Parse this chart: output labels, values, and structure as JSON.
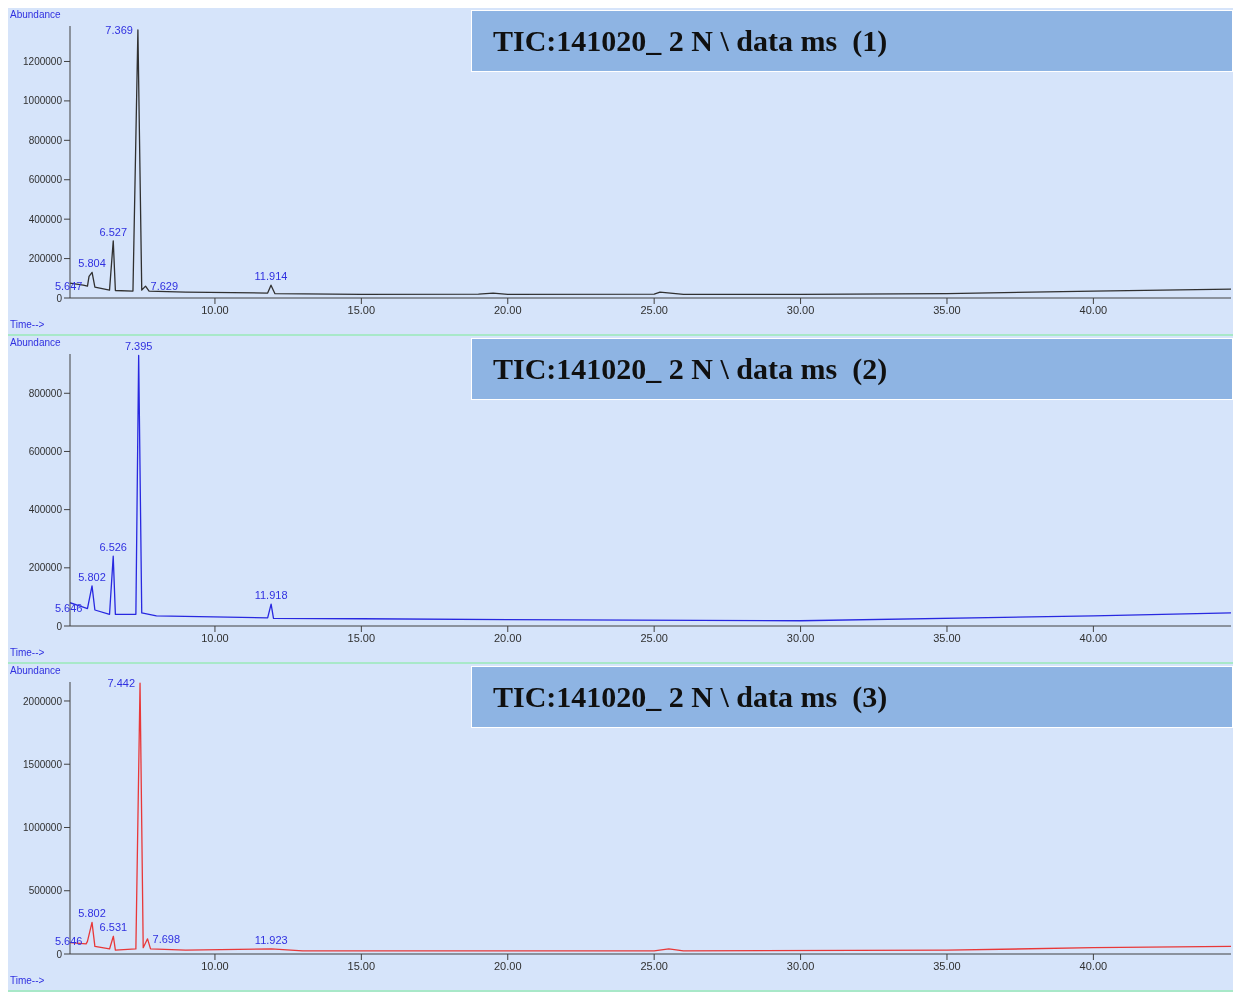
{
  "chart_data": [
    {
      "type": "line",
      "title": "TIC:141020_ 2 N \\ data ms  (1)",
      "xlabel": "Time-->",
      "ylabel": "Abundance",
      "xlim": [
        5.05,
        44.7
      ],
      "xticks": [
        {
          "value": 10,
          "label": "10.00"
        },
        {
          "value": 15,
          "label": "15.00"
        },
        {
          "value": 20,
          "label": "20.00"
        },
        {
          "value": 25,
          "label": "25.00"
        },
        {
          "value": 30,
          "label": "30.00"
        },
        {
          "value": 35,
          "label": "35.00"
        },
        {
          "value": 40,
          "label": "40.00"
        }
      ],
      "ylim": [
        0,
        1380000
      ],
      "yticks": [
        0,
        200000,
        400000,
        600000,
        800000,
        1000000,
        1200000
      ],
      "series": [
        {
          "color": "#303030",
          "x": [
            5.05,
            5.5,
            5.647,
            5.7,
            5.804,
            5.9,
            6.4,
            6.527,
            6.6,
            7.2,
            7.369,
            7.5,
            7.629,
            7.75,
            9,
            11.8,
            11.914,
            12.05,
            15,
            19,
            19.5,
            20,
            25,
            25.2,
            26,
            30,
            35,
            40,
            44.7
          ],
          "values": [
            75000,
            65000,
            60000,
            110000,
            130000,
            55000,
            40000,
            290000,
            38000,
            35000,
            1360000,
            40000,
            60000,
            35000,
            30000,
            25000,
            65000,
            22000,
            18000,
            20000,
            25000,
            18000,
            20000,
            30000,
            18000,
            18000,
            22000,
            35000,
            45000
          ]
        }
      ],
      "annotations": [
        {
          "text": "5.647",
          "x": 5.647,
          "y": 60000
        },
        {
          "text": "5.804",
          "x": 5.804,
          "y": 130000
        },
        {
          "text": "6.527",
          "x": 6.527,
          "y": 290000
        },
        {
          "text": "7.369",
          "x": 7.369,
          "y": 1360000
        },
        {
          "text": "7.629",
          "x": 7.629,
          "y": 60000
        },
        {
          "text": "11.914",
          "x": 11.914,
          "y": 65000
        }
      ]
    },
    {
      "type": "line",
      "title": "TIC:141020_ 2 N \\ data ms  (2)",
      "xlabel": "Time-->",
      "ylabel": "Abundance",
      "xlim": [
        5.05,
        44.7
      ],
      "xticks": [
        {
          "value": 10,
          "label": "10.00"
        },
        {
          "value": 15,
          "label": "15.00"
        },
        {
          "value": 20,
          "label": "20.00"
        },
        {
          "value": 25,
          "label": "25.00"
        },
        {
          "value": 30,
          "label": "30.00"
        },
        {
          "value": 35,
          "label": "35.00"
        },
        {
          "value": 40,
          "label": "40.00"
        }
      ],
      "ylim": [
        0,
        935000
      ],
      "yticks": [
        0,
        200000,
        400000,
        600000,
        800000
      ],
      "series": [
        {
          "color": "#2828e0",
          "x": [
            5.05,
            5.5,
            5.646,
            5.802,
            5.9,
            6.4,
            6.526,
            6.6,
            7.3,
            7.395,
            7.5,
            8,
            11.8,
            11.918,
            12,
            15,
            20,
            30,
            40,
            44.7
          ],
          "values": [
            80000,
            65000,
            60000,
            138000,
            55000,
            40000,
            240000,
            40000,
            40000,
            930000,
            45000,
            35000,
            28000,
            75000,
            26000,
            25000,
            22000,
            18000,
            35000,
            45000
          ]
        }
      ],
      "annotations": [
        {
          "text": "5.646",
          "x": 5.646,
          "y": 60000
        },
        {
          "text": "5.802",
          "x": 5.802,
          "y": 138000
        },
        {
          "text": "6.526",
          "x": 6.526,
          "y": 240000
        },
        {
          "text": "7.395",
          "x": 7.395,
          "y": 930000
        },
        {
          "text": "11.918",
          "x": 11.918,
          "y": 75000
        }
      ]
    },
    {
      "type": "line",
      "title": "TIC:141020_ 2 N \\ data ms  (3)",
      "xlabel": "Time-->",
      "ylabel": "Abundance",
      "xlim": [
        5.05,
        44.7
      ],
      "xticks": [
        {
          "value": 10,
          "label": "10.00"
        },
        {
          "value": 15,
          "label": "15.00"
        },
        {
          "value": 20,
          "label": "20.00"
        },
        {
          "value": 25,
          "label": "25.00"
        },
        {
          "value": 30,
          "label": "30.00"
        },
        {
          "value": 35,
          "label": "35.00"
        },
        {
          "value": 40,
          "label": "40.00"
        }
      ],
      "ylim": [
        0,
        2150000
      ],
      "yticks": [
        0,
        500000,
        1000000,
        1500000,
        2000000
      ],
      "series": [
        {
          "color": "#e83838",
          "x": [
            5.05,
            5.6,
            5.646,
            5.802,
            5.9,
            6.4,
            6.531,
            6.6,
            7.3,
            7.442,
            7.55,
            7.698,
            7.8,
            9,
            11.923,
            13,
            25,
            25.5,
            26,
            35,
            40,
            44.7
          ],
          "values": [
            90000,
            80000,
            100000,
            250000,
            60000,
            40000,
            140000,
            30000,
            40000,
            2140000,
            50000,
            120000,
            40000,
            30000,
            40000,
            25000,
            25000,
            40000,
            25000,
            30000,
            50000,
            60000
          ]
        }
      ],
      "annotations": [
        {
          "text": "5.646",
          "x": 5.646,
          "y": 100000
        },
        {
          "text": "5.802",
          "x": 5.802,
          "y": 250000
        },
        {
          "text": "6.531",
          "x": 6.531,
          "y": 140000
        },
        {
          "text": "7.442",
          "x": 7.442,
          "y": 2140000
        },
        {
          "text": "7.698",
          "x": 7.698,
          "y": 120000
        },
        {
          "text": "11.923",
          "x": 11.923,
          "y": 40000
        }
      ]
    }
  ]
}
